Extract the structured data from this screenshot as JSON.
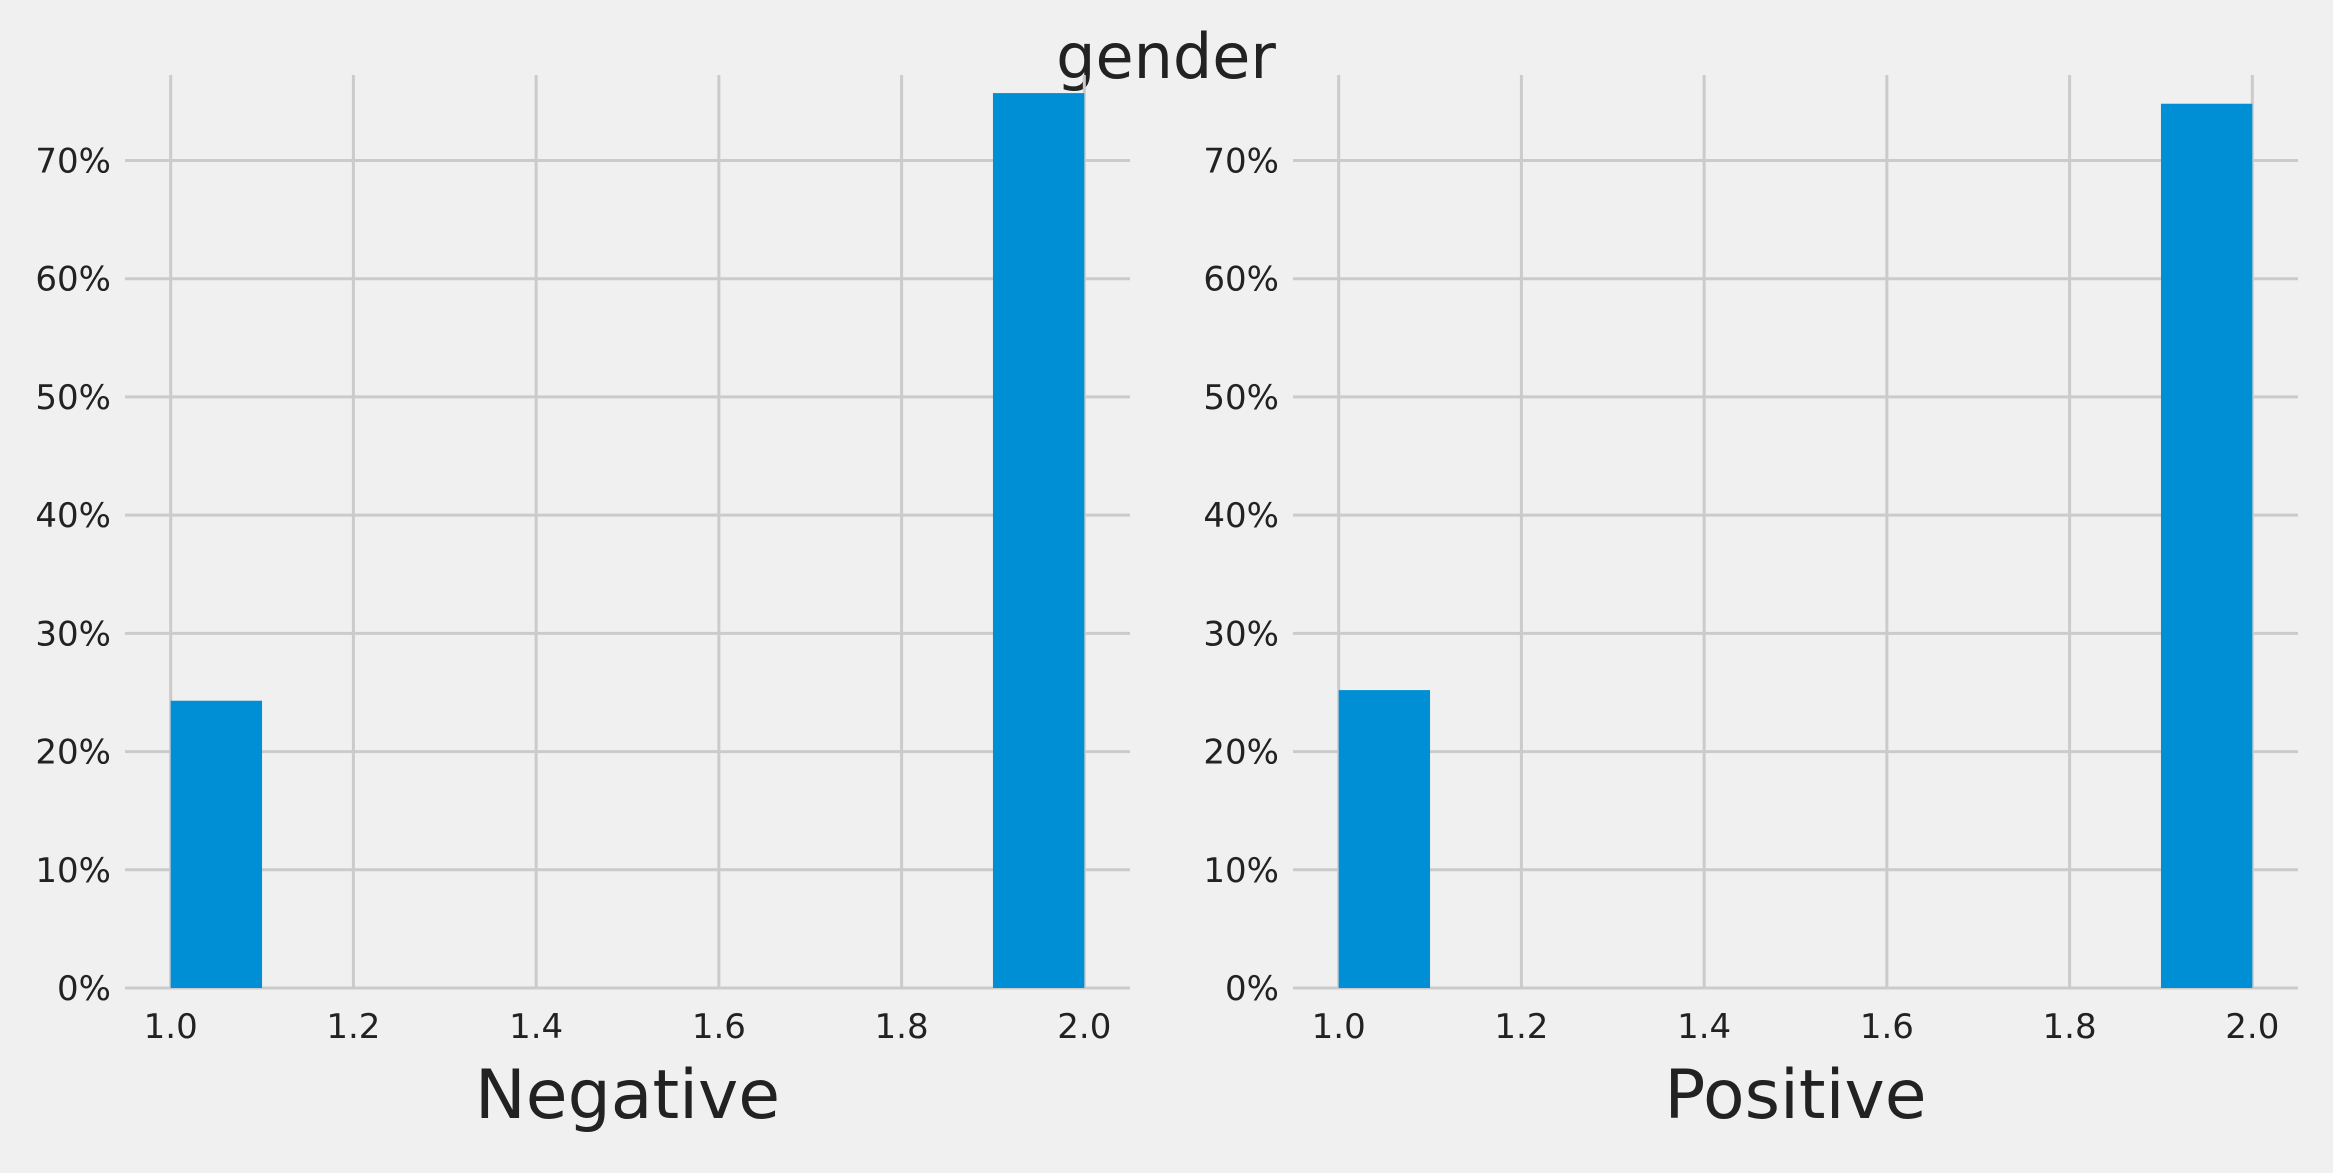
{
  "figure": {
    "title": "gender",
    "bar_color": "#008fd5",
    "grid_color": "#cbcbcb",
    "background_color": "#f0f0f0"
  },
  "chart_data": [
    {
      "type": "bar",
      "xlabel": "Negative",
      "ylabel": "",
      "xlim": [
        0.95,
        2.05
      ],
      "ylim": [
        0,
        0.785
      ],
      "xticks": [
        1.0,
        1.2,
        1.4,
        1.6,
        1.8,
        2.0
      ],
      "xtick_labels": [
        "1.0",
        "1.2",
        "1.4",
        "1.6",
        "1.8",
        "2.0"
      ],
      "yticks": [
        0,
        0.1,
        0.2,
        0.3,
        0.4,
        0.5,
        0.6,
        0.7
      ],
      "ytick_labels": [
        "0%",
        "10%",
        "20%",
        "30%",
        "40%",
        "50%",
        "60%",
        "70%"
      ],
      "grid": true,
      "bars": [
        {
          "x_start": 1.0,
          "x_end": 1.1,
          "value": 0.243
        },
        {
          "x_start": 1.9,
          "x_end": 2.0,
          "value": 0.757
        }
      ]
    },
    {
      "type": "bar",
      "xlabel": "Positive",
      "ylabel": "",
      "xlim": [
        0.95,
        2.05
      ],
      "ylim": [
        0,
        0.785
      ],
      "xticks": [
        1.0,
        1.2,
        1.4,
        1.6,
        1.8,
        2.0
      ],
      "xtick_labels": [
        "1.0",
        "1.2",
        "1.4",
        "1.6",
        "1.8",
        "2.0"
      ],
      "yticks": [
        0,
        0.1,
        0.2,
        0.3,
        0.4,
        0.5,
        0.6,
        0.7
      ],
      "ytick_labels": [
        "0%",
        "10%",
        "20%",
        "30%",
        "40%",
        "50%",
        "60%",
        "70%"
      ],
      "grid": true,
      "bars": [
        {
          "x_start": 1.0,
          "x_end": 1.1,
          "value": 0.252
        },
        {
          "x_start": 1.9,
          "x_end": 2.0,
          "value": 0.748
        }
      ]
    }
  ]
}
